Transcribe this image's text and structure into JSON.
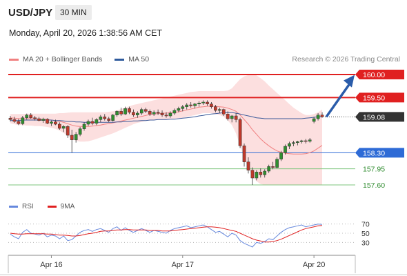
{
  "header": {
    "symbol": "USD/JPY",
    "interval": "30 MIN",
    "datetime": "Monday, April 20, 2026 1:38:56 AM CET"
  },
  "legend": {
    "items": [
      {
        "label": "MA 20 + Bollinger Bands",
        "color": "#f08080"
      },
      {
        "label": "MA 50",
        "color": "#2e5a9c"
      }
    ],
    "credit": "Research © 2026 Trading Central"
  },
  "rsi_legend": {
    "items": [
      {
        "label": "RSI",
        "color": "#6688dd"
      },
      {
        "label": "9MA",
        "color": "#e02020"
      }
    ]
  },
  "levels": [
    {
      "value": 160.0,
      "label": "160.00",
      "kind": "resistance",
      "color": "#e02020"
    },
    {
      "value": 159.5,
      "label": "159.50",
      "kind": "resistance",
      "color": "#e02020"
    },
    {
      "value": 159.08,
      "label": "159.08",
      "kind": "last",
      "color": "#333333"
    },
    {
      "value": 158.3,
      "label": "158.30",
      "kind": "pivot",
      "color": "#2e6bd6"
    },
    {
      "value": 157.95,
      "label": "157.95",
      "kind": "support",
      "color": "#2e8b2e"
    },
    {
      "value": 157.6,
      "label": "157.60",
      "kind": "support",
      "color": "#2e8b2e"
    }
  ],
  "x_axis": {
    "ticks": [
      {
        "label": "Apr 16",
        "index": 10
      },
      {
        "label": "Apr 17",
        "index": 42
      },
      {
        "label": "Apr 20",
        "index": 74
      }
    ]
  },
  "rsi_axis": {
    "ticks": [
      {
        "value": 70,
        "label": "70"
      },
      {
        "value": 50,
        "label": "50"
      },
      {
        "value": 30,
        "label": "30"
      }
    ]
  },
  "chart_data": {
    "type": "candlestick",
    "ylim": [
      157.45,
      160.15
    ],
    "candles": [
      [
        159.05,
        159.1,
        158.98,
        159.02
      ],
      [
        159.02,
        159.08,
        158.95,
        158.98
      ],
      [
        158.98,
        159.04,
        158.9,
        158.93
      ],
      [
        158.93,
        159.1,
        158.9,
        159.06
      ],
      [
        159.06,
        159.15,
        159.02,
        159.12
      ],
      [
        159.12,
        159.16,
        159.04,
        159.06
      ],
      [
        159.06,
        159.1,
        159.0,
        159.04
      ],
      [
        159.04,
        159.08,
        158.98,
        159.0
      ],
      [
        159.0,
        159.06,
        158.95,
        159.03
      ],
      [
        159.03,
        159.05,
        158.92,
        158.94
      ],
      [
        158.94,
        159.0,
        158.88,
        158.97
      ],
      [
        158.97,
        159.02,
        158.9,
        158.92
      ],
      [
        158.92,
        158.96,
        158.8,
        158.83
      ],
      [
        158.83,
        158.9,
        158.75,
        158.87
      ],
      [
        158.87,
        158.9,
        158.62,
        158.68
      ],
      [
        158.68,
        158.8,
        158.3,
        158.58
      ],
      [
        158.58,
        158.75,
        158.52,
        158.7
      ],
      [
        158.7,
        158.86,
        158.66,
        158.82
      ],
      [
        158.82,
        158.96,
        158.78,
        158.92
      ],
      [
        158.92,
        159.02,
        158.88,
        158.98
      ],
      [
        158.98,
        159.06,
        158.9,
        158.94
      ],
      [
        158.94,
        159.05,
        158.9,
        159.02
      ],
      [
        159.02,
        159.12,
        158.96,
        159.08
      ],
      [
        159.08,
        159.14,
        159.0,
        159.04
      ],
      [
        159.04,
        159.08,
        158.96,
        159.0
      ],
      [
        159.0,
        159.14,
        158.98,
        159.12
      ],
      [
        159.12,
        159.22,
        159.08,
        159.2
      ],
      [
        159.2,
        159.28,
        159.1,
        159.14
      ],
      [
        159.14,
        159.3,
        159.12,
        159.26
      ],
      [
        159.26,
        159.3,
        159.14,
        159.18
      ],
      [
        159.18,
        159.24,
        159.08,
        159.12
      ],
      [
        159.12,
        159.2,
        159.06,
        159.16
      ],
      [
        159.16,
        159.28,
        159.12,
        159.24
      ],
      [
        159.24,
        159.28,
        159.16,
        159.2
      ],
      [
        159.2,
        159.24,
        159.1,
        159.14
      ],
      [
        159.14,
        159.22,
        159.1,
        159.18
      ],
      [
        159.18,
        159.24,
        159.12,
        159.16
      ],
      [
        159.16,
        159.22,
        159.08,
        159.12
      ],
      [
        159.12,
        159.18,
        159.06,
        159.1
      ],
      [
        159.1,
        159.2,
        159.06,
        159.16
      ],
      [
        159.16,
        159.26,
        159.12,
        159.22
      ],
      [
        159.22,
        159.3,
        159.18,
        159.26
      ],
      [
        159.26,
        159.34,
        159.2,
        159.3
      ],
      [
        159.3,
        159.38,
        159.24,
        159.34
      ],
      [
        159.34,
        159.4,
        159.28,
        159.32
      ],
      [
        159.32,
        159.38,
        159.26,
        159.36
      ],
      [
        159.36,
        159.42,
        159.3,
        159.38
      ],
      [
        159.38,
        159.44,
        159.34,
        159.4
      ],
      [
        159.4,
        159.44,
        159.32,
        159.36
      ],
      [
        159.36,
        159.4,
        159.26,
        159.3
      ],
      [
        159.3,
        159.34,
        159.18,
        159.22
      ],
      [
        159.22,
        159.28,
        159.16,
        159.24
      ],
      [
        159.24,
        159.26,
        159.1,
        159.14
      ],
      [
        159.14,
        159.2,
        159.0,
        159.04
      ],
      [
        159.04,
        159.12,
        158.96,
        159.1
      ],
      [
        159.1,
        159.16,
        158.96,
        159.02
      ],
      [
        159.02,
        159.06,
        158.4,
        158.45
      ],
      [
        158.45,
        158.5,
        158.0,
        158.1
      ],
      [
        158.1,
        158.2,
        157.85,
        157.92
      ],
      [
        157.92,
        157.98,
        157.6,
        157.75
      ],
      [
        157.75,
        157.92,
        157.7,
        157.88
      ],
      [
        157.88,
        157.96,
        157.76,
        157.82
      ],
      [
        157.82,
        157.94,
        157.76,
        157.9
      ],
      [
        157.9,
        158.04,
        157.86,
        158.0
      ],
      [
        158.0,
        158.1,
        157.94,
        157.98
      ],
      [
        157.98,
        158.2,
        157.96,
        158.16
      ],
      [
        158.16,
        158.34,
        158.12,
        158.3
      ],
      [
        158.3,
        158.48,
        158.26,
        158.44
      ],
      [
        158.44,
        158.54,
        158.38,
        158.5
      ],
      [
        158.5,
        158.56,
        158.44,
        158.52
      ],
      [
        158.52,
        158.56,
        158.46,
        158.54
      ],
      [
        158.54,
        158.58,
        158.5,
        158.56
      ],
      [
        158.56,
        158.6,
        158.5,
        158.55
      ],
      [
        158.55,
        158.62,
        158.52,
        158.58
      ],
      [
        158.98,
        159.08,
        158.94,
        159.04
      ],
      [
        159.04,
        159.16,
        159.0,
        159.12
      ],
      [
        159.12,
        159.18,
        159.06,
        159.08
      ]
    ],
    "ma20": [
      159.06,
      159.05,
      159.04,
      159.04,
      159.04,
      159.04,
      159.04,
      159.03,
      159.03,
      159.02,
      159.01,
      159.0,
      158.98,
      158.96,
      158.93,
      158.9,
      158.88,
      158.87,
      158.87,
      158.87,
      158.88,
      158.89,
      158.9,
      158.92,
      158.93,
      158.95,
      158.97,
      158.99,
      159.01,
      159.03,
      159.05,
      159.07,
      159.09,
      159.11,
      159.13,
      159.14,
      159.15,
      159.16,
      159.16,
      159.17,
      159.18,
      159.19,
      159.21,
      159.23,
      159.25,
      159.27,
      159.29,
      159.3,
      159.31,
      159.31,
      159.31,
      159.3,
      159.29,
      159.27,
      159.24,
      159.2,
      159.12,
      159.02,
      158.92,
      158.8,
      158.7,
      158.6,
      158.52,
      158.45,
      158.39,
      158.34,
      158.31,
      158.29,
      158.28,
      158.27,
      158.27,
      158.27,
      158.28,
      158.3,
      158.34,
      158.4,
      158.46
    ],
    "bb_upper": [
      159.14,
      159.14,
      159.14,
      159.14,
      159.15,
      159.15,
      159.15,
      159.15,
      159.15,
      159.15,
      159.15,
      159.15,
      159.16,
      159.16,
      159.17,
      159.18,
      159.18,
      159.18,
      159.18,
      159.18,
      159.18,
      159.18,
      159.18,
      159.18,
      159.19,
      159.2,
      159.22,
      159.25,
      159.28,
      159.31,
      159.34,
      159.36,
      159.38,
      159.4,
      159.42,
      159.44,
      159.46,
      159.48,
      159.5,
      159.52,
      159.54,
      159.56,
      159.58,
      159.6,
      159.62,
      159.63,
      159.64,
      159.64,
      159.64,
      159.64,
      159.64,
      159.64,
      159.64,
      159.65,
      159.7,
      159.8,
      159.9,
      159.96,
      159.99,
      160.0,
      159.98,
      159.92,
      159.85,
      159.76,
      159.68,
      159.6,
      159.52,
      159.44,
      159.36,
      159.28,
      159.22,
      159.16,
      159.12,
      159.12,
      159.14,
      159.18,
      159.24
    ],
    "bb_lower": [
      158.94,
      158.92,
      158.9,
      158.9,
      158.89,
      158.89,
      158.88,
      158.88,
      158.87,
      158.86,
      158.84,
      158.82,
      158.78,
      158.73,
      158.67,
      158.6,
      158.56,
      158.54,
      158.54,
      158.55,
      158.57,
      158.6,
      158.63,
      158.66,
      158.69,
      158.72,
      158.76,
      158.8,
      158.84,
      158.88,
      158.92,
      158.95,
      158.97,
      158.99,
      159.0,
      159.01,
      159.02,
      159.02,
      159.02,
      159.03,
      159.04,
      159.05,
      159.06,
      159.08,
      159.1,
      159.12,
      159.14,
      159.16,
      159.16,
      159.16,
      159.14,
      159.12,
      159.08,
      159.0,
      158.9,
      158.72,
      158.45,
      158.18,
      157.96,
      157.78,
      157.68,
      157.62,
      157.6,
      157.6,
      157.6,
      157.6,
      157.6,
      157.6,
      157.6,
      157.6,
      157.6,
      157.6,
      157.6,
      157.6,
      157.6,
      157.6,
      157.6
    ],
    "ma50": [
      159.0,
      159.0,
      159.0,
      159.01,
      159.01,
      159.01,
      159.01,
      159.01,
      159.01,
      159.01,
      159.01,
      159.0,
      159.0,
      158.99,
      158.98,
      158.98,
      158.97,
      158.97,
      158.96,
      158.96,
      158.96,
      158.96,
      158.96,
      158.96,
      158.96,
      158.96,
      158.97,
      158.97,
      158.98,
      158.98,
      158.99,
      158.99,
      159.0,
      159.0,
      159.01,
      159.01,
      159.02,
      159.02,
      159.02,
      159.03,
      159.03,
      159.04,
      159.05,
      159.06,
      159.07,
      159.08,
      159.1,
      159.11,
      159.13,
      159.14,
      159.15,
      159.16,
      159.17,
      159.17,
      159.17,
      159.16,
      159.14,
      159.12,
      159.1,
      159.08,
      159.06,
      159.05,
      159.04,
      159.04,
      159.04,
      159.04,
      159.04,
      159.04,
      159.04,
      159.04,
      159.04,
      159.04,
      159.05,
      159.06,
      159.07,
      159.08,
      159.08
    ],
    "rsi": [
      48,
      42,
      38,
      52,
      58,
      50,
      48,
      46,
      50,
      42,
      46,
      44,
      38,
      44,
      34,
      36,
      44,
      52,
      56,
      58,
      54,
      58,
      60,
      56,
      52,
      60,
      64,
      56,
      62,
      56,
      52,
      56,
      60,
      56,
      52,
      56,
      54,
      52,
      50,
      56,
      60,
      62,
      64,
      66,
      62,
      64,
      66,
      68,
      64,
      58,
      52,
      54,
      48,
      42,
      50,
      46,
      34,
      28,
      24,
      20,
      30,
      28,
      32,
      38,
      36,
      44,
      52,
      58,
      62,
      64,
      66,
      68,
      64,
      66,
      68,
      70,
      69
    ],
    "rsi_ma": [
      50,
      49,
      48,
      48,
      49,
      49,
      49,
      49,
      49,
      48,
      48,
      47,
      46,
      46,
      45,
      44,
      44,
      45,
      47,
      49,
      50,
      52,
      54,
      55,
      55,
      56,
      57,
      57,
      58,
      58,
      57,
      57,
      57,
      57,
      56,
      56,
      56,
      55,
      55,
      55,
      56,
      57,
      58,
      59,
      60,
      61,
      62,
      63,
      64,
      64,
      63,
      62,
      60,
      58,
      56,
      54,
      50,
      46,
      42,
      38,
      35,
      33,
      31,
      31,
      32,
      34,
      37,
      41,
      45,
      49,
      53,
      57,
      60,
      62,
      64,
      66,
      67
    ],
    "forecast_arrow": {
      "from_value": 159.08,
      "to_value": 159.9
    }
  }
}
